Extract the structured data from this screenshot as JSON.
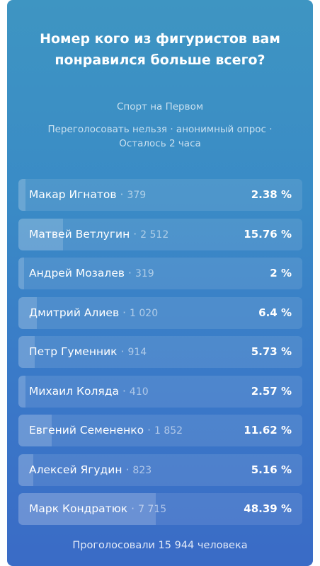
{
  "poll": {
    "title": "Номер кого из фигуристов вам понравился больше всего?",
    "author": "Спорт на Первом",
    "meta": "Переголосовать нельзя · анонимный опрос · Осталось 2 часа",
    "footer": "Проголосовали 15 944 человека",
    "options": [
      {
        "name": "Макар Игнатов",
        "count": "379",
        "percent": "2.38 %",
        "share": 2.38
      },
      {
        "name": "Матвей Ветлугин",
        "count": "2 512",
        "percent": "15.76 %",
        "share": 15.76
      },
      {
        "name": "Андрей Мозалев",
        "count": "319",
        "percent": "2 %",
        "share": 2.0
      },
      {
        "name": "Дмитрий Алиев",
        "count": "1 020",
        "percent": "6.4 %",
        "share": 6.4
      },
      {
        "name": "Петр Гуменник",
        "count": "914",
        "percent": "5.73 %",
        "share": 5.73
      },
      {
        "name": "Михаил Коляда",
        "count": "410",
        "percent": "2.57 %",
        "share": 2.57
      },
      {
        "name": "Евгений Семененко",
        "count": "1 852",
        "percent": "11.62 %",
        "share": 11.62
      },
      {
        "name": "Алексей Ягудин",
        "count": "823",
        "percent": "5.16 %",
        "share": 5.16
      },
      {
        "name": "Марк Кондратюк",
        "count": "7 715",
        "percent": "48.39 %",
        "share": 48.39
      }
    ]
  }
}
